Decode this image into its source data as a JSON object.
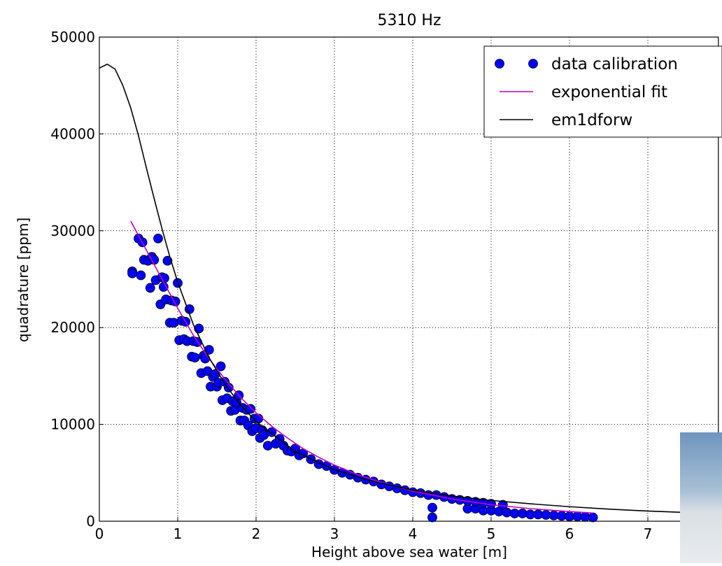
{
  "chart_data": {
    "type": "scatter",
    "title": "5310 Hz",
    "x_label": "Height above sea water [m]",
    "y_label": "quadrature [ppm]",
    "xlim": [
      0,
      7.9
    ],
    "ylim": [
      0,
      50000
    ],
    "xticks": [
      0,
      1,
      2,
      3,
      4,
      5,
      6,
      7
    ],
    "yticks": [
      0,
      10000,
      20000,
      30000,
      40000,
      50000
    ],
    "grid": true,
    "legend": "upper right",
    "series": [
      {
        "name": "data calibration",
        "type": "scatter",
        "color": "#0000ff",
        "x": [
          0.42,
          0.42,
          0.5,
          0.53,
          0.55,
          0.57,
          0.62,
          0.65,
          0.67,
          0.7,
          0.72,
          0.75,
          0.78,
          0.8,
          0.82,
          0.83,
          0.85,
          0.87,
          0.9,
          0.92,
          0.95,
          0.97,
          1.0,
          1.02,
          1.05,
          1.08,
          1.1,
          1.12,
          1.15,
          1.18,
          1.2,
          1.22,
          1.25,
          1.27,
          1.3,
          1.33,
          1.35,
          1.38,
          1.4,
          1.42,
          1.45,
          1.48,
          1.5,
          1.52,
          1.55,
          1.57,
          1.6,
          1.63,
          1.65,
          1.68,
          1.7,
          1.73,
          1.75,
          1.78,
          1.8,
          1.83,
          1.85,
          1.88,
          1.9,
          1.93,
          1.95,
          1.98,
          2.0,
          2.03,
          2.05,
          2.08,
          2.1,
          2.15,
          2.2,
          2.25,
          2.3,
          2.35,
          2.4,
          2.45,
          2.5,
          2.55,
          2.6,
          2.7,
          2.8,
          2.9,
          3.0,
          3.1,
          3.2,
          3.3,
          3.4,
          3.5,
          3.6,
          3.7,
          3.8,
          3.9,
          4.0,
          4.1,
          4.2,
          4.25,
          4.25,
          4.3,
          4.4,
          4.5,
          4.6,
          4.7,
          4.7,
          4.8,
          4.8,
          4.9,
          4.9,
          5.0,
          5.0,
          5.1,
          5.15,
          5.2,
          5.3,
          5.4,
          5.5,
          5.6,
          5.7,
          5.8,
          5.9,
          6.0,
          6.1,
          6.2,
          6.3
        ],
        "values": [
          25800,
          25600,
          29200,
          25400,
          28800,
          27000,
          26900,
          24100,
          27300,
          27000,
          24900,
          29200,
          22400,
          25200,
          24200,
          25100,
          22900,
          26900,
          20500,
          22800,
          20500,
          22700,
          24600,
          18700,
          20700,
          18800,
          20600,
          18600,
          21900,
          17000,
          18600,
          16900,
          18500,
          19900,
          15300,
          17100,
          16800,
          15500,
          17700,
          13900,
          14900,
          15200,
          13900,
          14300,
          16000,
          12500,
          14400,
          12700,
          13800,
          11400,
          12400,
          11500,
          12300,
          13000,
          10400,
          11700,
          10400,
          11500,
          9900,
          11600,
          9300,
          10600,
          9600,
          10600,
          8600,
          9400,
          8900,
          7800,
          9200,
          8000,
          8500,
          7800,
          7300,
          7200,
          7500,
          6800,
          7000,
          6400,
          5900,
          5700,
          5300,
          5000,
          4800,
          4500,
          4300,
          4100,
          3800,
          3600,
          3400,
          3200,
          3000,
          2900,
          2700,
          1400,
          400,
          2700,
          2500,
          2300,
          2200,
          1300,
          2100,
          1300,
          2000,
          1100,
          1900,
          1100,
          1800,
          1000,
          1700,
          900,
          800,
          800,
          700,
          700,
          650,
          600,
          550,
          500,
          500,
          450,
          400
        ]
      },
      {
        "name": "exponential fit",
        "type": "line",
        "color": "#bf00bf",
        "x": [
          0.4,
          0.6,
          0.8,
          1.0,
          1.2,
          1.4,
          1.6,
          1.8,
          2.0,
          2.2,
          2.4,
          2.6,
          2.8,
          3.0,
          3.3,
          3.6,
          4.0,
          4.5,
          5.0,
          5.5,
          6.0,
          6.3
        ],
        "values": [
          31000,
          28000,
          25000,
          22000,
          19200,
          16800,
          14700,
          12800,
          11200,
          9800,
          8600,
          7500,
          6600,
          5800,
          4800,
          4000,
          3100,
          2300,
          1700,
          1300,
          1000,
          850
        ]
      },
      {
        "name": "em1dforw",
        "type": "line",
        "color": "#000000",
        "x": [
          0,
          0.1,
          0.2,
          0.3,
          0.4,
          0.5,
          0.6,
          0.7,
          0.8,
          0.9,
          1.0,
          1.2,
          1.4,
          1.6,
          1.8,
          2.0,
          2.5,
          3.0,
          3.5,
          4.0,
          4.5,
          5.0,
          5.5,
          6.0,
          6.5,
          7.0,
          7.5,
          7.9
        ],
        "values": [
          46800,
          47200,
          46700,
          45000,
          42700,
          39800,
          36500,
          33300,
          30200,
          27300,
          24700,
          20300,
          16900,
          14200,
          12000,
          10300,
          7200,
          5300,
          4100,
          3200,
          2600,
          2150,
          1800,
          1500,
          1250,
          1050,
          900,
          800
        ]
      }
    ]
  }
}
